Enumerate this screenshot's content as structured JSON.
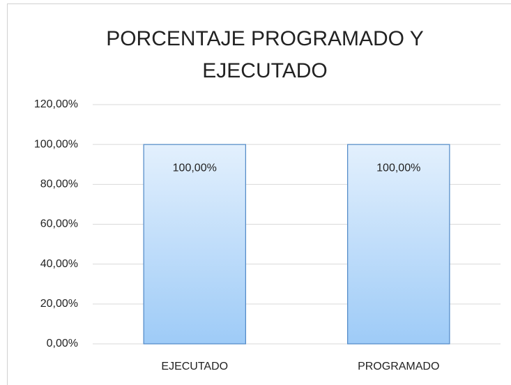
{
  "chart_data": {
    "type": "bar",
    "title": "PORCENTAJE PROGRAMADO Y EJECUTADO",
    "categories": [
      "EJECUTADO",
      "PROGRAMADO"
    ],
    "values": [
      100,
      100
    ],
    "value_labels": [
      "100,00%",
      "100,00%"
    ],
    "color": "#9ecbf7",
    "ylim": [
      0,
      120
    ],
    "yticks": [
      {
        "value": 0,
        "label": "0,00%"
      },
      {
        "value": 20,
        "label": "20,00%"
      },
      {
        "value": 40,
        "label": "40,00%"
      },
      {
        "value": 60,
        "label": "60,00%"
      },
      {
        "value": 80,
        "label": "80,00%"
      },
      {
        "value": 100,
        "label": "100,00%"
      },
      {
        "value": 120,
        "label": "120,00%"
      }
    ],
    "grid": true
  }
}
